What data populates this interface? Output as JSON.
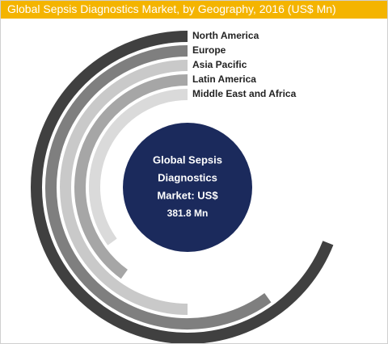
{
  "chart_data": {
    "type": "radial-bar",
    "title": "Global Sepsis Diagnostics Market, by Geography, 2016 (US$ Mn)",
    "center_text": [
      "Global Sepsis",
      "Diagnostics",
      "Market: US$",
      "381.8 Mn"
    ],
    "categories": [
      "North America",
      "Europe",
      "Asia Pacific",
      "Latin America",
      "Middle East and Africa"
    ],
    "values": [
      69,
      60,
      50,
      40,
      35
    ],
    "colors": [
      "#404040",
      "#7f7f7f",
      "#c9c9c9",
      "#a6a6a6",
      "#dadada"
    ],
    "xlim": [
      0,
      100
    ]
  }
}
